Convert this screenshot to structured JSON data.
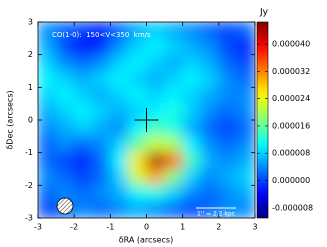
{
  "chart_data": {
    "type": "heatmap",
    "annotation": "CO(1-0):  150<V<350  km/s",
    "scale_bar_label": "1'' = 2.2 kpc",
    "x_label": "δRA (arcsecs)",
    "y_label": "δDec (arcsecs)",
    "colorbar_label": "Jy",
    "colormap": "jet",
    "xlim": [
      -3,
      3
    ],
    "ylim": [
      -3,
      3
    ],
    "xticks": [
      -3,
      -2,
      -1,
      0,
      1,
      2,
      3
    ],
    "yticks": [
      -3,
      -2,
      -1,
      0,
      1,
      2,
      3
    ],
    "clim": [
      -1.1e-05,
      4.65e-05
    ],
    "cticks": [
      {
        "value": -8e-06,
        "label": "-0.000008"
      },
      {
        "value": 0,
        "label": "0.000000"
      },
      {
        "value": 8e-06,
        "label": "0.000008"
      },
      {
        "value": 1.6e-05,
        "label": "0.000016"
      },
      {
        "value": 2.4e-05,
        "label": "0.000024"
      },
      {
        "value": 3.2e-05,
        "label": "0.000032"
      },
      {
        "value": 4e-05,
        "label": "0.000040"
      }
    ],
    "x": [
      -2.75,
      -2.25,
      -1.75,
      -1.25,
      -0.75,
      -0.25,
      0.25,
      0.75,
      1.25,
      1.75,
      2.25,
      2.75
    ],
    "y": [
      2.75,
      2.25,
      1.75,
      1.25,
      0.75,
      0.25,
      -0.25,
      -0.75,
      -1.25,
      -1.75,
      -2.25,
      -2.75
    ],
    "z": [
      [
        4e-06,
        2e-06,
        0,
        -2e-06,
        2e-06,
        6e-06,
        8e-06,
        6e-06,
        4e-06,
        2e-06,
        0,
        2e-06
      ],
      [
        6e-06,
        0,
        -4e-06,
        -2e-06,
        4e-06,
        8e-06,
        1e-05,
        8e-06,
        6e-06,
        4e-06,
        0,
        -2e-06
      ],
      [
        8e-06,
        4e-06,
        2e-06,
        4e-06,
        8e-06,
        1e-05,
        8e-06,
        6e-06,
        8e-06,
        6e-06,
        2e-06,
        0
      ],
      [
        1e-05,
        8e-06,
        6e-06,
        8e-06,
        1e-05,
        8e-06,
        6e-06,
        8e-06,
        1e-05,
        8e-06,
        4e-06,
        2e-06
      ],
      [
        8e-06,
        1e-05,
        8e-06,
        6e-06,
        8e-06,
        1e-05,
        8e-06,
        1e-05,
        8e-06,
        6e-06,
        4e-06,
        4e-06
      ],
      [
        6e-06,
        8e-06,
        1e-05,
        8e-06,
        6e-06,
        8e-06,
        1e-05,
        1.2e-05,
        8e-06,
        4e-06,
        2e-06,
        4e-06
      ],
      [
        4e-06,
        6e-06,
        8e-06,
        6e-06,
        4e-06,
        1e-05,
        1.4e-05,
        1.2e-05,
        6e-06,
        2e-06,
        0,
        2e-06
      ],
      [
        2e-06,
        4e-06,
        2e-06,
        4e-06,
        8e-06,
        1.6e-05,
        2.2e-05,
        2e-05,
        1e-05,
        4e-06,
        2e-06,
        4e-06
      ],
      [
        2e-06,
        0,
        -2e-06,
        2e-06,
        1e-05,
        2.6e-05,
        4.4e-05,
        3.4e-05,
        1.4e-05,
        6e-06,
        4e-06,
        6e-06
      ],
      [
        4e-06,
        2e-06,
        0,
        2e-06,
        8e-06,
        2.2e-05,
        3e-05,
        1.8e-05,
        8e-06,
        4e-06,
        6e-06,
        8e-06
      ],
      [
        2e-06,
        4e-06,
        2e-06,
        4e-06,
        6e-06,
        1e-05,
        1.2e-05,
        8e-06,
        4e-06,
        2e-06,
        4e-06,
        6e-06
      ],
      [
        0,
        2e-06,
        4e-06,
        2e-06,
        4e-06,
        6e-06,
        4e-06,
        2e-06,
        0,
        2e-06,
        4e-06,
        4e-06
      ]
    ]
  }
}
